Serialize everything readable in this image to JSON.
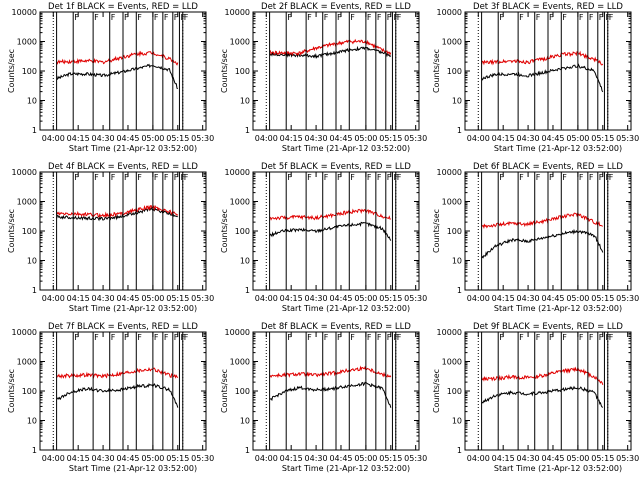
{
  "figure": {
    "y_axis_label": "Counts/sec",
    "x_axis_label": "Start Time (21-Apr-12 03:52:00)",
    "y_tick_labels": [
      "1",
      "10",
      "100",
      "1000",
      "10000"
    ],
    "x_tick_labels": [
      "04:00",
      "04:15",
      "04:30",
      "04:45",
      "05:00",
      "05:15",
      "05:30"
    ],
    "attenuator_marks": [
      "F",
      "F",
      "F",
      "F",
      "F",
      "F",
      "F",
      "F",
      "F",
      "F"
    ],
    "colors": {
      "events": "#000000",
      "lld": "#e00000",
      "background": "#ffffff"
    }
  },
  "chart_data": [
    {
      "type": "line",
      "title": "Det 1f BLACK = Events, RED = LLD",
      "ylabel": "Counts/sec",
      "xlabel": "Start Time (21-Apr-12 03:52:00)",
      "ylim": [
        1,
        10000
      ],
      "yscale": "log",
      "xlim": [
        "03:52",
        "05:32"
      ],
      "x": [
        "04:02",
        "04:10",
        "04:20",
        "04:30",
        "04:40",
        "04:50",
        "05:00",
        "05:10",
        "05:15"
      ],
      "series": [
        {
          "name": "BLACK = Events",
          "values": [
            55,
            80,
            80,
            70,
            90,
            120,
            160,
            110,
            25
          ]
        },
        {
          "name": "RED = LLD",
          "values": [
            200,
            210,
            220,
            200,
            280,
            380,
            420,
            260,
            180
          ]
        }
      ]
    },
    {
      "type": "line",
      "title": "Det 2f BLACK = Events, RED = LLD",
      "ylabel": "Counts/sec",
      "xlabel": "Start Time (21-Apr-12 03:52:00)",
      "ylim": [
        1,
        10000
      ],
      "yscale": "log",
      "xlim": [
        "03:52",
        "05:32"
      ],
      "x": [
        "04:02",
        "04:10",
        "04:20",
        "04:30",
        "04:40",
        "04:50",
        "05:00",
        "05:10",
        "05:15"
      ],
      "series": [
        {
          "name": "BLACK = Events",
          "values": [
            380,
            360,
            340,
            320,
            400,
            520,
            600,
            420,
            330
          ]
        },
        {
          "name": "RED = LLD",
          "values": [
            420,
            410,
            400,
            600,
            800,
            1000,
            1000,
            500,
            400
          ]
        }
      ]
    },
    {
      "type": "line",
      "title": "Det 3f BLACK = Events, RED = LLD",
      "ylabel": "Counts/sec",
      "xlabel": "Start Time (21-Apr-12 03:52:00)",
      "ylim": [
        1,
        10000
      ],
      "yscale": "log",
      "xlim": [
        "03:52",
        "05:32"
      ],
      "x": [
        "04:02",
        "04:10",
        "04:20",
        "04:30",
        "04:40",
        "04:50",
        "05:00",
        "05:10",
        "05:15"
      ],
      "series": [
        {
          "name": "BLACK = Events",
          "values": [
            55,
            75,
            80,
            70,
            90,
            120,
            150,
            100,
            20
          ]
        },
        {
          "name": "RED = LLD",
          "values": [
            190,
            200,
            220,
            200,
            260,
            360,
            400,
            250,
            170
          ]
        }
      ]
    },
    {
      "type": "line",
      "title": "Det 4f BLACK = Events, RED = LLD",
      "ylabel": "Counts/sec",
      "xlabel": "Start Time (21-Apr-12 03:52:00)",
      "ylim": [
        1,
        10000
      ],
      "yscale": "log",
      "xlim": [
        "03:52",
        "05:32"
      ],
      "x": [
        "04:02",
        "04:10",
        "04:20",
        "04:30",
        "04:40",
        "04:50",
        "05:00",
        "05:10",
        "05:15"
      ],
      "series": [
        {
          "name": "BLACK = Events",
          "values": [
            300,
            290,
            270,
            260,
            300,
            420,
            560,
            380,
            320
          ]
        },
        {
          "name": "RED = LLD",
          "values": [
            380,
            380,
            360,
            340,
            380,
            520,
            660,
            450,
            360
          ]
        }
      ]
    },
    {
      "type": "line",
      "title": "Det 5f BLACK = Events, RED = LLD",
      "ylabel": "Counts/sec",
      "xlabel": "Start Time (21-Apr-12 03:52:00)",
      "ylim": [
        1,
        10000
      ],
      "yscale": "log",
      "xlim": [
        "03:52",
        "05:32"
      ],
      "x": [
        "04:02",
        "04:10",
        "04:20",
        "04:30",
        "04:40",
        "04:50",
        "05:00",
        "05:10",
        "05:15"
      ],
      "series": [
        {
          "name": "BLACK = Events",
          "values": [
            70,
            100,
            110,
            100,
            130,
            160,
            180,
            120,
            50
          ]
        },
        {
          "name": "RED = LLD",
          "values": [
            270,
            280,
            300,
            280,
            340,
            450,
            500,
            320,
            260
          ]
        }
      ]
    },
    {
      "type": "line",
      "title": "Det 6f BLACK = Events, RED = LLD",
      "ylabel": "Counts/sec",
      "xlabel": "Start Time (21-Apr-12 03:52:00)",
      "ylim": [
        1,
        10000
      ],
      "yscale": "log",
      "xlim": [
        "03:52",
        "05:32"
      ],
      "x": [
        "04:02",
        "04:10",
        "04:20",
        "04:30",
        "04:40",
        "04:50",
        "05:00",
        "05:10",
        "05:15"
      ],
      "series": [
        {
          "name": "BLACK = Events",
          "values": [
            12,
            30,
            50,
            45,
            60,
            80,
            100,
            70,
            20
          ]
        },
        {
          "name": "RED = LLD",
          "values": [
            140,
            160,
            180,
            170,
            220,
            300,
            380,
            200,
            150
          ]
        }
      ]
    },
    {
      "type": "line",
      "title": "Det 7f BLACK = Events, RED = LLD",
      "ylabel": "Counts/sec",
      "xlabel": "Start Time (21-Apr-12 03:52:00)",
      "ylim": [
        1,
        10000
      ],
      "yscale": "log",
      "xlim": [
        "03:52",
        "05:32"
      ],
      "x": [
        "04:02",
        "04:10",
        "04:20",
        "04:30",
        "04:40",
        "04:50",
        "05:00",
        "05:10",
        "05:15"
      ],
      "series": [
        {
          "name": "BLACK = Events",
          "values": [
            50,
            90,
            120,
            100,
            110,
            140,
            160,
            110,
            30
          ]
        },
        {
          "name": "RED = LLD",
          "values": [
            320,
            330,
            350,
            320,
            380,
            480,
            560,
            340,
            300
          ]
        }
      ]
    },
    {
      "type": "line",
      "title": "Det 8f BLACK = Events, RED = LLD",
      "ylabel": "Counts/sec",
      "xlabel": "Start Time (21-Apr-12 03:52:00)",
      "ylim": [
        1,
        10000
      ],
      "yscale": "log",
      "xlim": [
        "03:52",
        "05:32"
      ],
      "x": [
        "04:02",
        "04:10",
        "04:20",
        "04:30",
        "04:40",
        "04:50",
        "05:00",
        "05:10",
        "05:15"
      ],
      "series": [
        {
          "name": "BLACK = Events",
          "values": [
            50,
            90,
            130,
            110,
            120,
            150,
            180,
            120,
            30
          ]
        },
        {
          "name": "RED = LLD",
          "values": [
            330,
            340,
            380,
            340,
            400,
            500,
            600,
            360,
            320
          ]
        }
      ]
    },
    {
      "type": "line",
      "title": "Det 9f BLACK = Events, RED = LLD",
      "ylabel": "Counts/sec",
      "xlabel": "Start Time (21-Apr-12 03:52:00)",
      "ylim": [
        1,
        10000
      ],
      "yscale": "log",
      "xlim": [
        "03:52",
        "05:32"
      ],
      "x": [
        "04:02",
        "04:10",
        "04:20",
        "04:30",
        "04:40",
        "04:50",
        "05:00",
        "05:10",
        "05:15"
      ],
      "series": [
        {
          "name": "BLACK = Events",
          "values": [
            40,
            70,
            90,
            80,
            90,
            110,
            130,
            90,
            25
          ]
        },
        {
          "name": "RED = LLD",
          "values": [
            250,
            260,
            300,
            280,
            340,
            460,
            560,
            300,
            180
          ]
        }
      ]
    }
  ]
}
